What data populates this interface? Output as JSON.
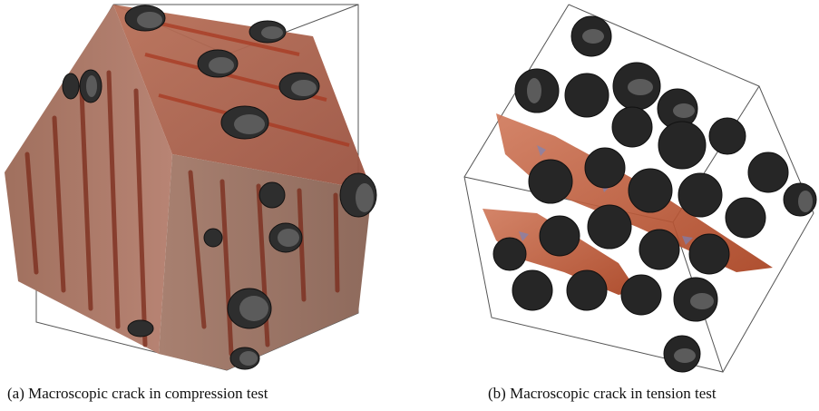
{
  "figure": {
    "subfigures": [
      {
        "label": "(a)",
        "caption": "Macroscopic crack in compression test"
      },
      {
        "label": "(b)",
        "caption": "Macroscopic crack in tension test"
      }
    ]
  },
  "colors": {
    "crack_surface": "#c46a4c",
    "crack_dark": "#8a2a18",
    "matrix_grey": "#9a8a80",
    "aggregate": "#2c2c2c",
    "aggregate_face": "#5a5a5a",
    "bbox_line": "#444444",
    "fragment_blue": "#6f86c6"
  }
}
